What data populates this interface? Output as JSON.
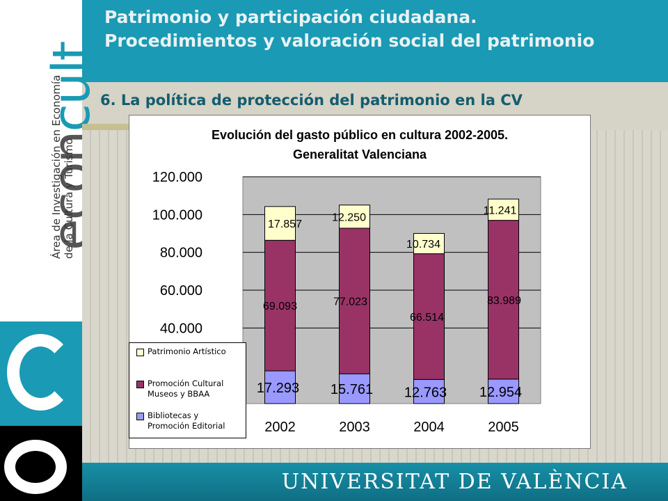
{
  "header": {
    "title": "Patrimonio y participación ciudadana. Procedimientos y valoración social del patrimonio",
    "subtitle": "6. La política de protección del patrimonio en la CV"
  },
  "brand": {
    "wordmark_prefix": "econ",
    "wordmark_suffix": "cult",
    "tagline_line1": "Área de Investigación en Economía",
    "tagline_line2": "de la Cultura y Turismo",
    "logo_letters": "c e"
  },
  "footer": {
    "university": "UNIVERSITAT DE VALÈNCIA"
  },
  "colors": {
    "teal": "#1a9ab4",
    "plot_bg": "#c0c0c0",
    "series_bibliotecas": "#9999ff",
    "series_promocion": "#993366",
    "series_patrimonio": "#ffffcc"
  },
  "chart_data": {
    "type": "bar",
    "stacked": true,
    "title": "Evolución del gasto público en cultura 2002-2005. Generalitat Valenciana",
    "title_line1": "Evolución del gasto público en cultura 2002-2005.",
    "title_line2": "Generalitat Valenciana",
    "categories": [
      "2002",
      "2003",
      "2004",
      "2005"
    ],
    "ylim": [
      0,
      120000
    ],
    "yticks": [
      "40.000",
      "60.000",
      "80.000",
      "100.000",
      "120.000"
    ],
    "ytick_values": [
      40000,
      60000,
      80000,
      100000,
      120000
    ],
    "grid": true,
    "legend_position": "bottom-left",
    "series": [
      {
        "name": "Bibliotecas y Promoción Editorial",
        "color": "#9999ff",
        "values": [
          17293,
          15761,
          12763,
          12954
        ],
        "labels": [
          "17.293",
          "15.761",
          "12.763",
          "12.954"
        ]
      },
      {
        "name": "Promoción Cultural Museos y BBAA",
        "color": "#993366",
        "values": [
          69093,
          77023,
          66514,
          83989
        ],
        "labels": [
          "69.093",
          "77.023",
          "66.514",
          "83.989"
        ]
      },
      {
        "name": "Patrimonio Artístico",
        "color": "#ffffcc",
        "values": [
          17857,
          12250,
          10734,
          11241
        ],
        "labels": [
          "17.857",
          "12.250",
          "10.734",
          "11.241"
        ]
      }
    ],
    "legend": [
      {
        "label": "Patrimonio Artístico",
        "color": "#ffffcc"
      },
      {
        "label": "Promoción Cultural\nMuseos y BBAA",
        "color": "#993366"
      },
      {
        "label": "Bibliotecas y\nPromoción Editorial",
        "color": "#9999ff"
      }
    ]
  }
}
